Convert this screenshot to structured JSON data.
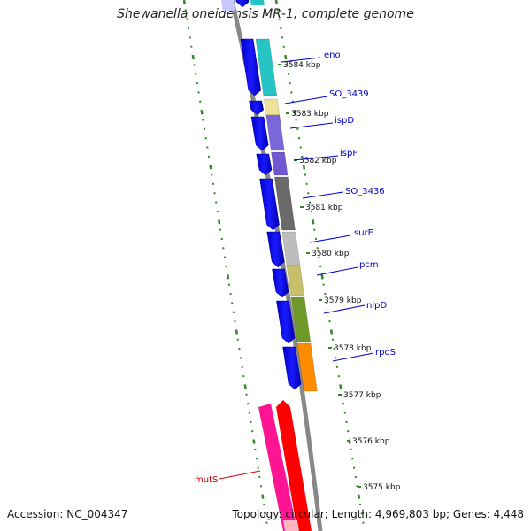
{
  "title": "Shewanella oneidensis MR-1, complete genome",
  "footer": {
    "accession": "Accession: NC_004347",
    "topology": "Topology: circular; Length: 4,969,803 bp; Genes: 4,448"
  },
  "scale": {
    "unit": "kbp",
    "ticks": [
      "3584 kbp",
      "3583 kbp",
      "3582 kbp",
      "3581 kbp",
      "3580 kbp",
      "3579 kbp",
      "3578 kbp",
      "3577 kbp",
      "3576 kbp",
      "3575 kbp"
    ]
  },
  "genes": [
    {
      "label": "eno",
      "color": "#26c4c4"
    },
    {
      "label": "SO_3439",
      "color": "#efe39b"
    },
    {
      "label": "ispD",
      "color": "#7b68d8"
    },
    {
      "label": "ispF",
      "color": "#7058d0"
    },
    {
      "label": "SO_3436",
      "color": "#6a6a6a"
    },
    {
      "label": "surE",
      "color": "#bdbdbd"
    },
    {
      "label": "pcm",
      "color": "#c8bf6a"
    },
    {
      "label": "nlpD",
      "color": "#6f9a2a"
    },
    {
      "label": "rpoS",
      "color": "#ff8c00"
    },
    {
      "label": "mutS",
      "color": "#ff0000"
    }
  ],
  "colors": {
    "cds": "#0000ff",
    "gc_ticks": "#2e8b22",
    "backbone": "#888888",
    "label_line": "#0000cc",
    "mutS_label": "#cc0000",
    "mutS_pink": "#ff1493"
  }
}
